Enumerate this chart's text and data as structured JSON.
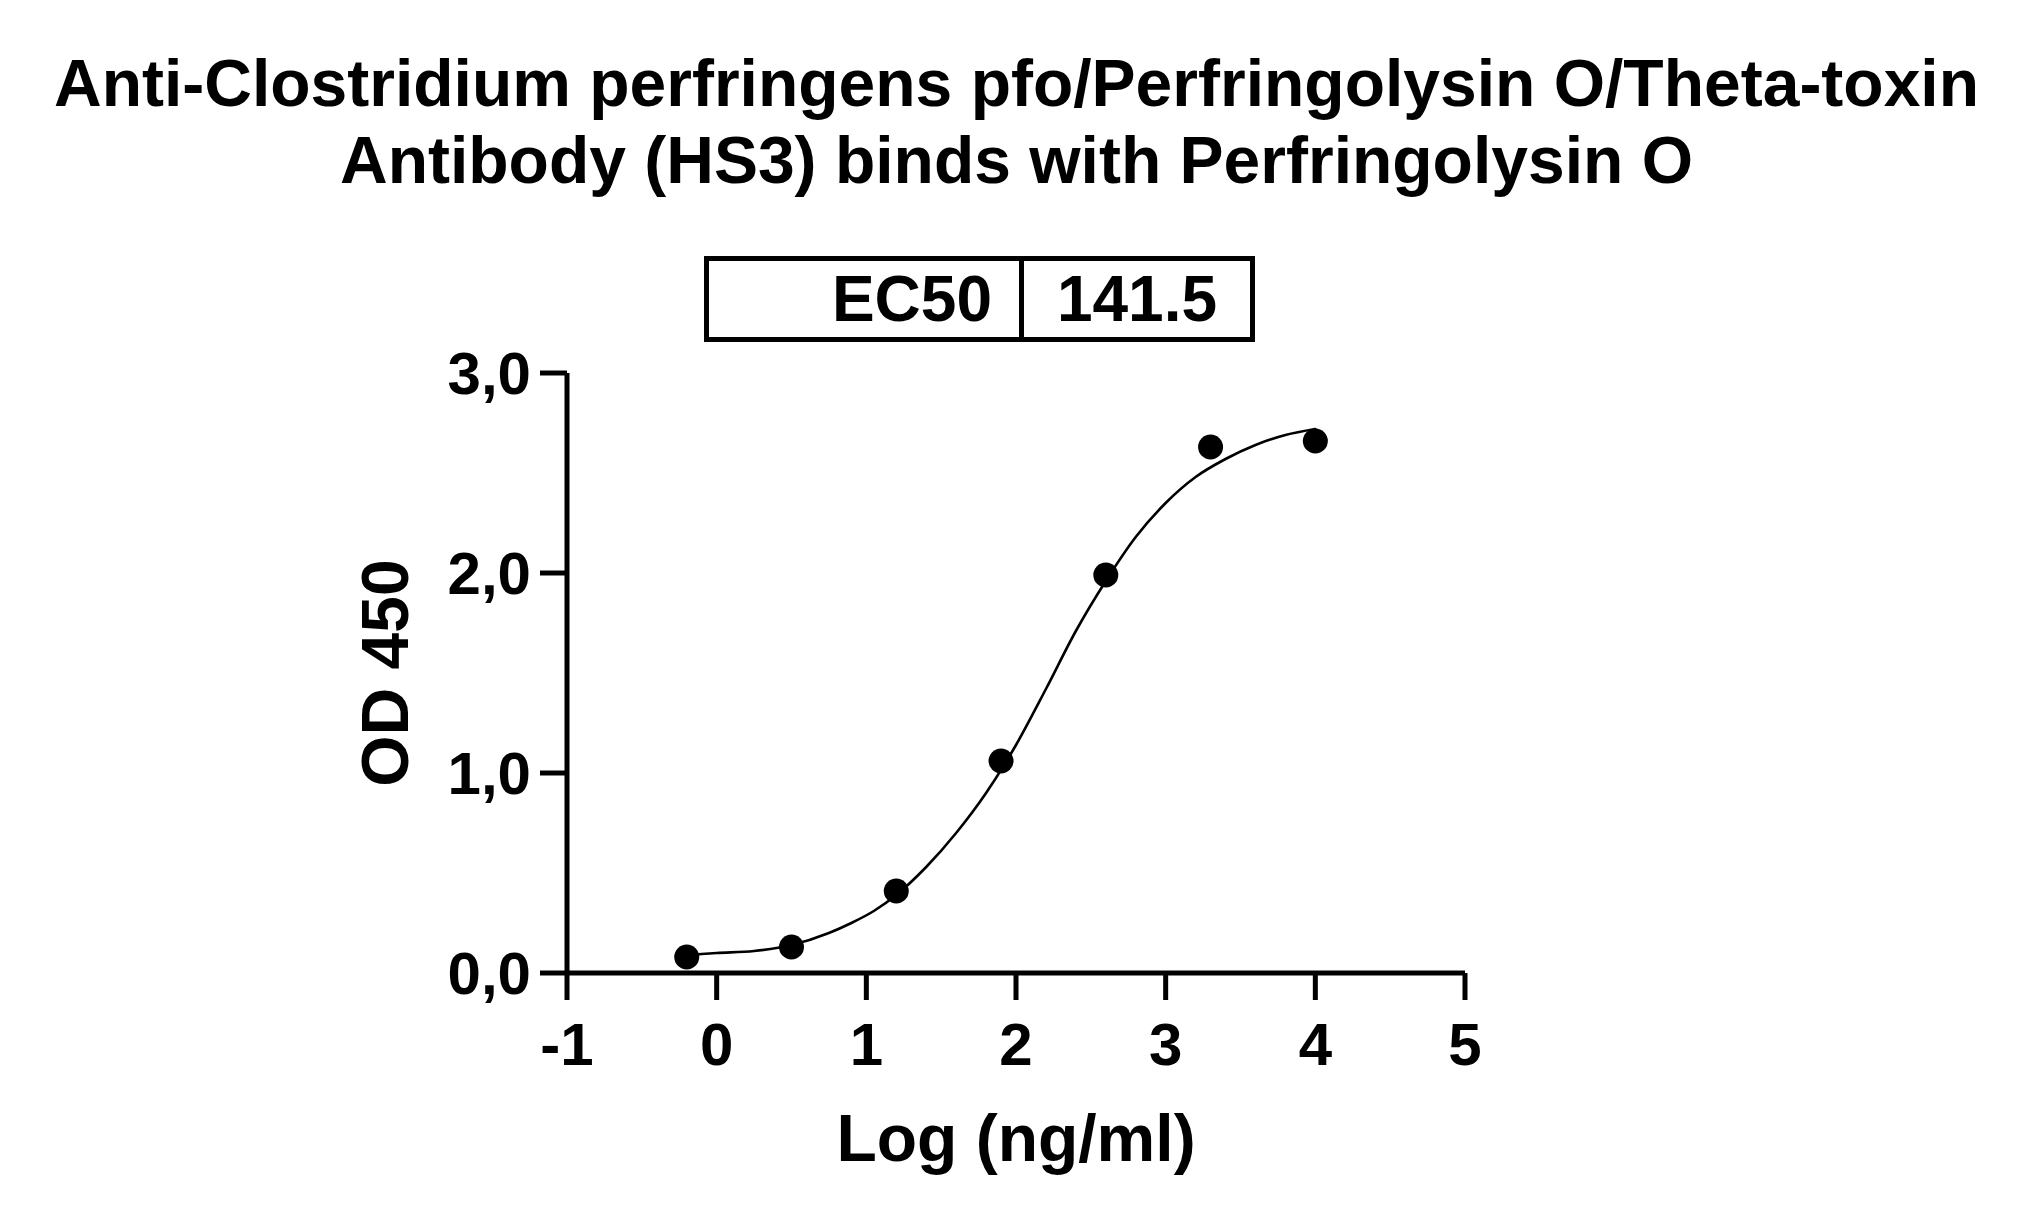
{
  "chart_data": {
    "type": "scatter",
    "title": "Anti-Clostridium perfringens pfo/Perfringolysin O/Theta-toxin Antibody (HS3) binds with Perfringolysin O",
    "xlabel": "Log (ng/ml)",
    "ylabel": "OD 450",
    "annotations": [
      "EC50",
      "141.5"
    ],
    "xlim": [
      -1,
      5
    ],
    "xticks": [
      -1,
      0,
      1,
      2,
      3,
      4,
      5
    ],
    "ylim": [
      0,
      3
    ],
    "yticks": [
      {
        "value": 0,
        "label": "0,0"
      },
      {
        "value": 1,
        "label": "1,0"
      },
      {
        "value": 2,
        "label": "2,0"
      },
      {
        "value": 3,
        "label": "3,0"
      }
    ],
    "series": [
      {
        "type": "line",
        "color": "#000000",
        "marker": "none",
        "line_style": "solid",
        "x": [
          -0.2,
          0,
          0.25,
          0.5,
          0.75,
          0.9,
          1.05,
          1.2,
          1.4,
          1.6,
          1.8,
          2.0,
          2.2,
          2.4,
          2.6,
          2.8,
          3.0,
          3.2,
          3.4,
          3.6,
          3.8,
          4.0
        ],
        "values": [
          0.09,
          0.1,
          0.11,
          0.14,
          0.2,
          0.25,
          0.31,
          0.39,
          0.53,
          0.7,
          0.9,
          1.14,
          1.42,
          1.71,
          1.96,
          2.18,
          2.35,
          2.48,
          2.57,
          2.64,
          2.69,
          2.72
        ]
      },
      {
        "color": "#000000",
        "marker": "circle",
        "x": [
          -0.2,
          0.5,
          1.2,
          1.9,
          2.6,
          3.3,
          4.0
        ],
        "values": [
          0.08,
          0.13,
          0.41,
          1.06,
          1.99,
          2.63,
          2.66
        ]
      }
    ]
  }
}
